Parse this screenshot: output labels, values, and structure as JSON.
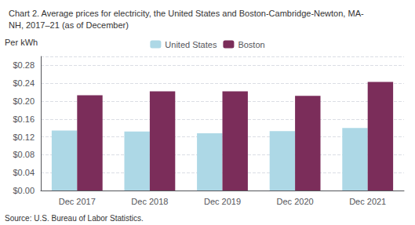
{
  "chart_data": {
    "type": "bar",
    "title": "Chart 2. Average prices for electricity, the United States and Boston-Cambridge-Newton, MA-\nNH, 2017–21 (as of December)",
    "ylabel": "Per kWh",
    "annotations": [
      "Source: U.S. Bureau of Labor Statistics."
    ],
    "categories": [
      "Dec 2017",
      "Dec 2018",
      "Dec 2019",
      "Dec 2020",
      "Dec 2021"
    ],
    "series": [
      {
        "name": "United States",
        "color": "#add8e6",
        "values": [
          0.134,
          0.132,
          0.128,
          0.133,
          0.14
        ]
      },
      {
        "name": "Boston",
        "color": "#7b2d5a",
        "values": [
          0.213,
          0.222,
          0.222,
          0.212,
          0.243
        ]
      }
    ],
    "ylim": [
      0,
      0.3
    ],
    "yticks": [
      {
        "value": 0.0,
        "label": "$0.00"
      },
      {
        "value": 0.04,
        "label": "$0.04"
      },
      {
        "value": 0.08,
        "label": "$0.08"
      },
      {
        "value": 0.12,
        "label": "$0.12"
      },
      {
        "value": 0.16,
        "label": "$0.16"
      },
      {
        "value": 0.2,
        "label": "$0.20"
      },
      {
        "value": 0.24,
        "label": "$0.24"
      },
      {
        "value": 0.28,
        "label": "$0.28"
      }
    ],
    "grid": true,
    "legend": "top"
  }
}
